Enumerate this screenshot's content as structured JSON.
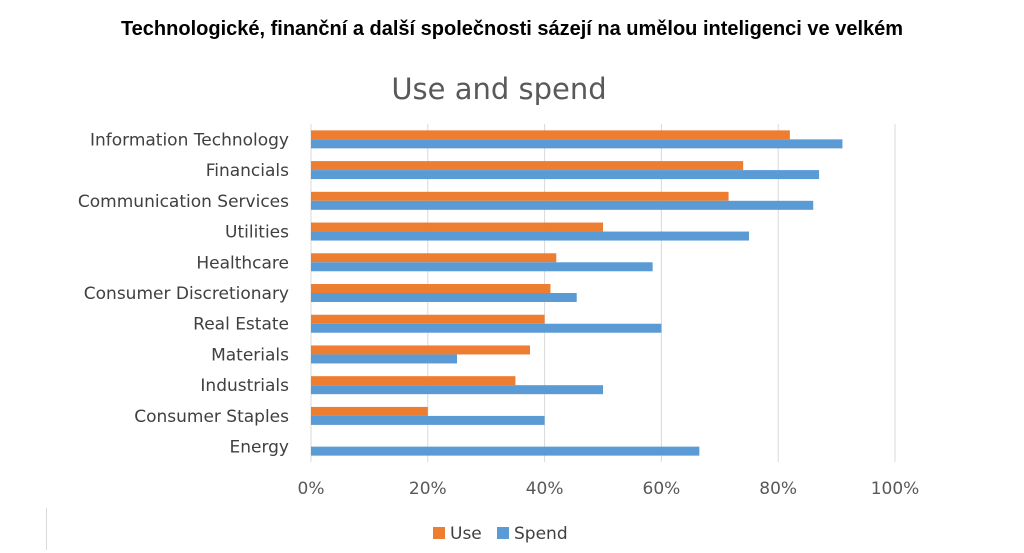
{
  "headline": "Technologické, finanční a další společnosti sázejí na umělou inteligenci ve velkém",
  "chart_data": {
    "type": "bar",
    "orientation": "horizontal",
    "title": "Use and spend",
    "categories": [
      "Information Technology",
      "Financials",
      "Communication Services",
      "Utilities",
      "Healthcare",
      "Consumer Discretionary",
      "Real Estate",
      "Materials",
      "Industrials",
      "Consumer Staples",
      "Energy"
    ],
    "series": [
      {
        "name": "Use",
        "color": "#ed7d31",
        "values": [
          82,
          74,
          71.5,
          50,
          42,
          41,
          40,
          37.5,
          35,
          20,
          0
        ]
      },
      {
        "name": "Spend",
        "color": "#5b9bd5",
        "values": [
          91,
          87,
          86,
          75,
          58.5,
          45.5,
          60,
          25,
          50,
          40,
          66.5
        ]
      }
    ],
    "xlim": [
      0,
      100
    ],
    "xticks": [
      "0%",
      "20%",
      "40%",
      "60%",
      "80%",
      "100%"
    ],
    "xlabel": "",
    "ylabel": "",
    "grid": "vertical",
    "legend": "bottom"
  }
}
